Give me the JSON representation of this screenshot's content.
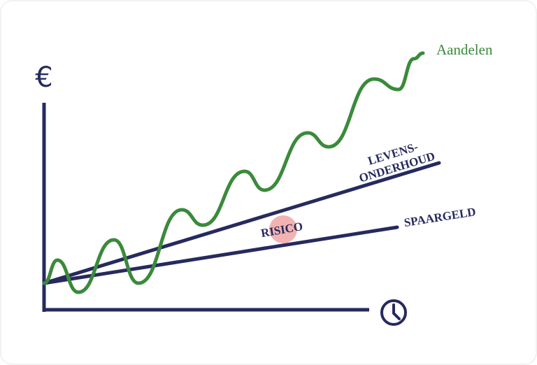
{
  "axis": {
    "y_symbol": "€"
  },
  "lines": {
    "stocks": {
      "label": "Aandelen"
    },
    "living_costs": {
      "label_line1": "LEVENS-",
      "label_line2": "ONDERHOUD"
    },
    "savings": {
      "label": "SPAARGELD"
    }
  },
  "risk": {
    "label": "RISICO"
  }
}
